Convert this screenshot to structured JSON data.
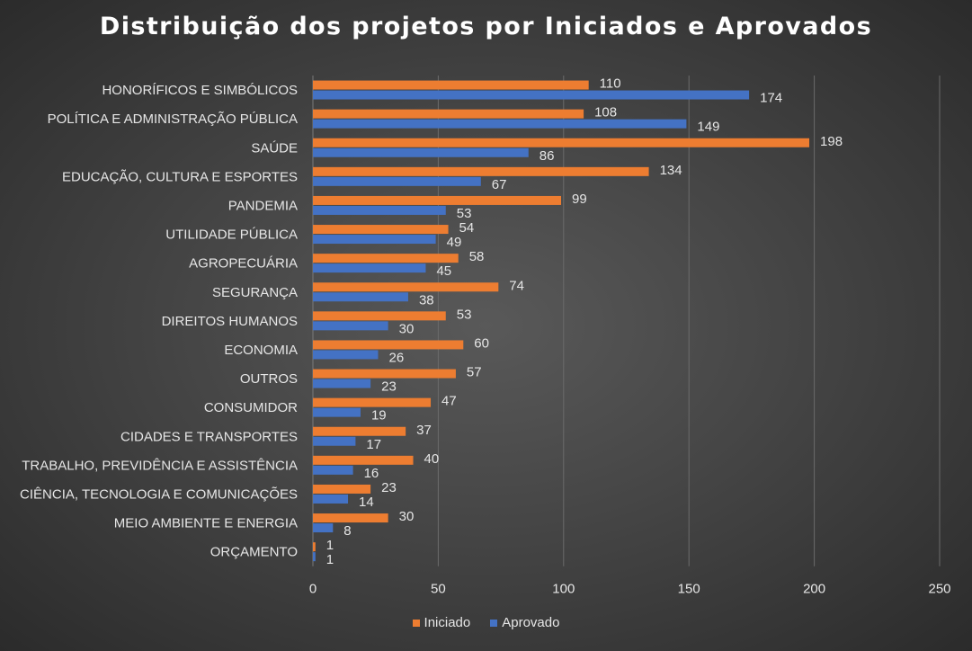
{
  "chart_data": {
    "type": "bar",
    "orientation": "horizontal",
    "title": "Distribuição dos projetos por Iniciados e Aprovados",
    "categories": [
      "HONORÍFICOS E SIMBÓLICOS",
      "POLÍTICA E ADMINISTRAÇÃO PÚBLICA",
      "SAÚDE",
      "EDUCAÇÃO, CULTURA E ESPORTES",
      "PANDEMIA",
      "UTILIDADE PÚBLICA",
      "AGROPECUÁRIA",
      "SEGURANÇA",
      "DIREITOS HUMANOS",
      "ECONOMIA",
      "OUTROS",
      "CONSUMIDOR",
      "CIDADES E TRANSPORTES",
      "TRABALHO, PREVIDÊNCIA E ASSISTÊNCIA",
      "CIÊNCIA, TECNOLOGIA E COMUNICAÇÕES",
      "MEIO AMBIENTE E ENERGIA",
      "ORÇAMENTO"
    ],
    "series": [
      {
        "name": "Iniciado",
        "color": "#ed7d31",
        "values": [
          110,
          108,
          198,
          134,
          99,
          54,
          58,
          74,
          53,
          60,
          57,
          47,
          37,
          40,
          23,
          30,
          1
        ]
      },
      {
        "name": "Aprovado",
        "color": "#4472c4",
        "values": [
          174,
          149,
          86,
          67,
          53,
          49,
          45,
          38,
          30,
          26,
          23,
          19,
          17,
          16,
          14,
          8,
          1
        ]
      }
    ],
    "xlim": [
      0,
      250
    ],
    "xticks": [
      0,
      50,
      100,
      150,
      200,
      250
    ],
    "grid": "vertical",
    "legend_position": "bottom",
    "data_labels": true
  }
}
